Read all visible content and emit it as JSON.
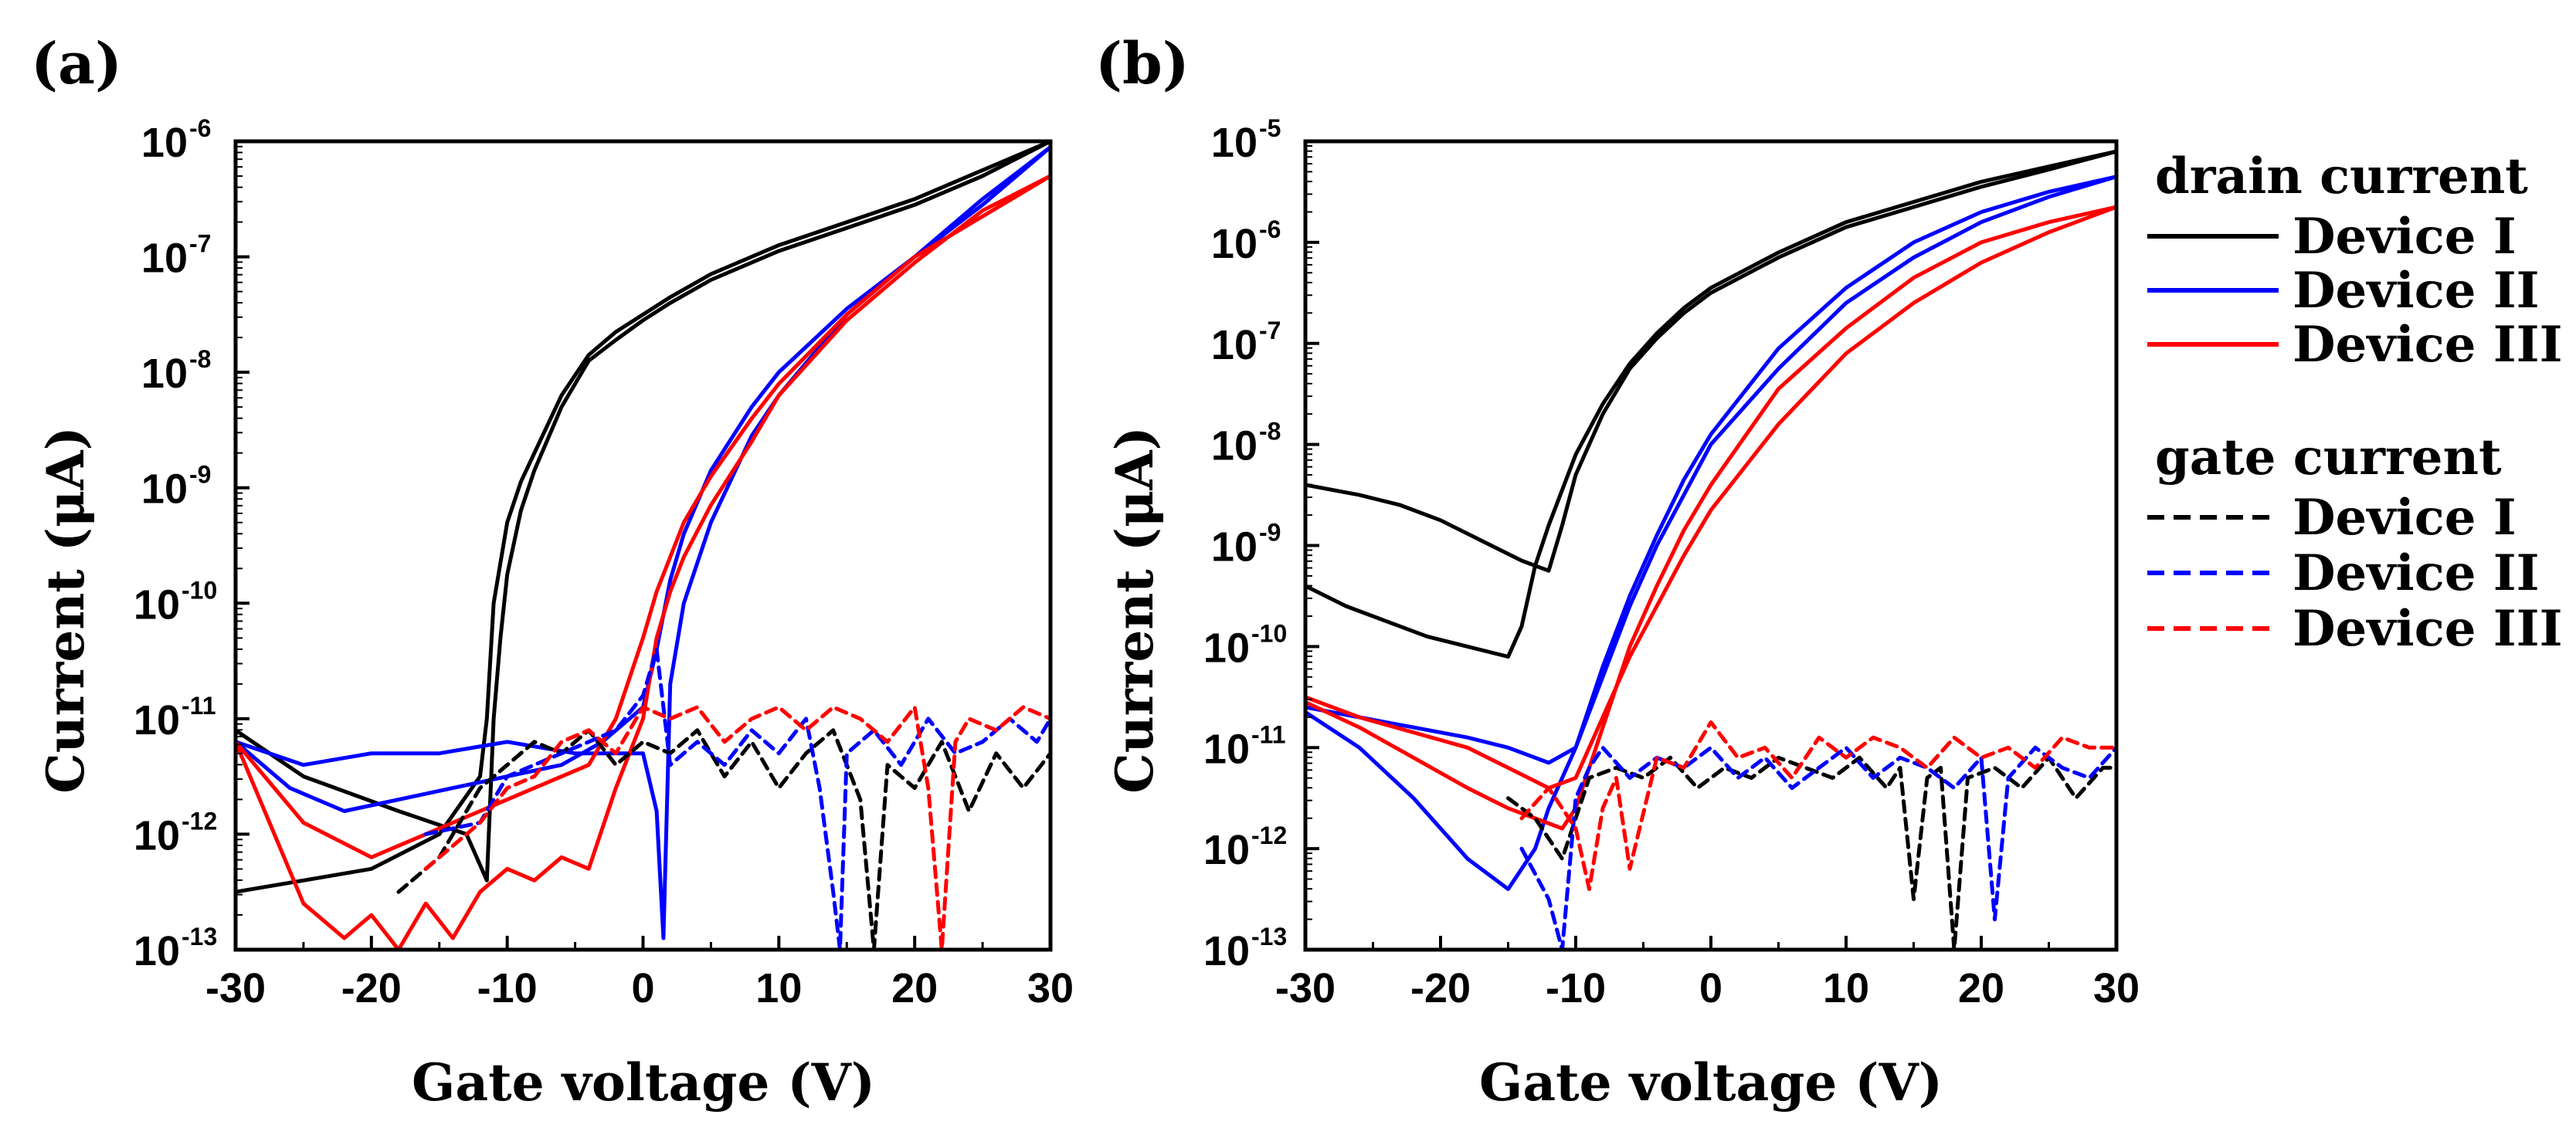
{
  "chart_data": [
    {
      "panel_label": "(a)",
      "type": "line",
      "xlabel": "Gate voltage (V)",
      "ylabel": "Current (μA)",
      "y_scale": "log",
      "xlim": [
        -30,
        30
      ],
      "ylim_exp": [
        -13,
        -6
      ],
      "xticks": [
        -30,
        -20,
        -10,
        0,
        10,
        20,
        30
      ],
      "yticks_exp": [
        -13,
        -12,
        -11,
        -10,
        -9,
        -8,
        -7,
        -6
      ],
      "series": [
        {
          "name": "Device I",
          "kind": "drain",
          "branch": "forward",
          "color": "#000000",
          "x": [
            -30,
            -25,
            -20,
            -15,
            -12,
            -11.5,
            -11,
            -10,
            -9,
            -8,
            -6,
            -4,
            -2,
            0,
            2,
            5,
            10,
            15,
            20,
            25,
            30
          ],
          "y_exp": [
            -12.5,
            -12.4,
            -12.3,
            -12.0,
            -11.5,
            -11,
            -10,
            -9.3,
            -8.95,
            -8.7,
            -8.2,
            -7.85,
            -7.65,
            -7.5,
            -7.35,
            -7.15,
            -6.9,
            -6.7,
            -6.5,
            -6.25,
            -6.0
          ]
        },
        {
          "name": "Device I",
          "kind": "drain",
          "branch": "reverse",
          "color": "#000000",
          "x": [
            30,
            25,
            20,
            15,
            10,
            5,
            2,
            0,
            -2,
            -4,
            -6,
            -8,
            -9,
            -10,
            -10.5,
            -11,
            -11.5,
            -13,
            -18,
            -25,
            -30
          ],
          "y_exp": [
            -6.0,
            -6.3,
            -6.55,
            -6.75,
            -6.95,
            -7.2,
            -7.4,
            -7.55,
            -7.72,
            -7.9,
            -8.3,
            -8.85,
            -9.2,
            -9.75,
            -10.3,
            -11,
            -12.4,
            -12.0,
            -11.8,
            -11.5,
            -11.1
          ]
        },
        {
          "name": "Device II",
          "kind": "drain",
          "branch": "forward",
          "color": "#0000ff",
          "x": [
            -30,
            -25,
            -20,
            -15,
            -10,
            -5,
            0,
            1,
            1.5,
            2,
            3,
            5,
            8,
            10,
            15,
            20,
            25,
            30
          ],
          "y_exp": [
            -11.2,
            -11.4,
            -11.3,
            -11.3,
            -11.2,
            -11.3,
            -11.3,
            -11.8,
            -12.9,
            -10.7,
            -10.0,
            -9.3,
            -8.55,
            -8.2,
            -7.5,
            -7.0,
            -6.55,
            -6.05
          ]
        },
        {
          "name": "Device II",
          "kind": "drain",
          "branch": "reverse",
          "color": "#0000ff",
          "x": [
            30,
            25,
            20,
            15,
            10,
            8,
            5,
            3,
            2,
            1,
            0,
            -3,
            -6,
            -10,
            -14,
            -18,
            -22,
            -26,
            -30
          ],
          "y_exp": [
            -6.05,
            -6.5,
            -7.0,
            -7.45,
            -8.0,
            -8.3,
            -8.85,
            -9.4,
            -9.8,
            -10.4,
            -10.9,
            -11.2,
            -11.4,
            -11.5,
            -11.6,
            -11.7,
            -11.8,
            -11.6,
            -11.2
          ]
        },
        {
          "name": "Device III",
          "kind": "drain",
          "branch": "forward",
          "color": "#ff0000",
          "x": [
            -30,
            -25,
            -22,
            -20,
            -18,
            -16,
            -14,
            -12,
            -10,
            -8,
            -6,
            -4,
            -2,
            0,
            1,
            2,
            3,
            5,
            8,
            10,
            15,
            20,
            25,
            30
          ],
          "y_exp": [
            -11.2,
            -12.6,
            -12.9,
            -12.7,
            -13.0,
            -12.6,
            -12.9,
            -12.5,
            -12.3,
            -12.4,
            -12.2,
            -12.3,
            -11.6,
            -11.0,
            -10.3,
            -9.9,
            -9.6,
            -9.15,
            -8.6,
            -8.2,
            -7.55,
            -7.05,
            -6.6,
            -6.3
          ]
        },
        {
          "name": "Device III",
          "kind": "drain",
          "branch": "reverse",
          "color": "#ff0000",
          "x": [
            30,
            25,
            20,
            15,
            10,
            8,
            5,
            3,
            2,
            1,
            0,
            -2,
            -4,
            -8,
            -12,
            -16,
            -20,
            -25,
            -30
          ],
          "y_exp": [
            -6.3,
            -6.65,
            -7.0,
            -7.5,
            -8.1,
            -8.4,
            -8.9,
            -9.3,
            -9.6,
            -9.9,
            -10.3,
            -11.0,
            -11.4,
            -11.6,
            -11.8,
            -12.0,
            -12.2,
            -11.9,
            -11.2
          ]
        },
        {
          "name": "Device I",
          "kind": "gate",
          "color": "#000000",
          "x": [
            -18,
            -15,
            -12,
            -10,
            -8,
            -6,
            -4,
            -2,
            0,
            2,
            4,
            6,
            8,
            10,
            12,
            14,
            16,
            17,
            18,
            20,
            22,
            24,
            26,
            28,
            30
          ],
          "y_exp": [
            -12.5,
            -12.2,
            -11.6,
            -11.4,
            -11.2,
            -11.3,
            -11.1,
            -11.4,
            -11.2,
            -11.3,
            -11.1,
            -11.5,
            -11.2,
            -11.6,
            -11.3,
            -11.1,
            -11.7,
            -13.0,
            -11.4,
            -11.6,
            -11.2,
            -11.8,
            -11.3,
            -11.6,
            -11.3
          ]
        },
        {
          "name": "Device II",
          "kind": "gate",
          "color": "#0000ff",
          "x": [
            -16,
            -12,
            -10,
            -8,
            -6,
            -4,
            -2,
            0,
            1,
            2,
            4,
            6,
            8,
            10,
            12,
            13,
            14,
            14.5,
            15,
            17,
            19,
            21,
            23,
            25,
            27,
            29,
            30
          ],
          "y_exp": [
            -12.0,
            -11.9,
            -11.5,
            -11.4,
            -11.3,
            -11.2,
            -11.1,
            -10.8,
            -10.4,
            -11.4,
            -11.2,
            -11.4,
            -11.1,
            -11.3,
            -11.0,
            -11.6,
            -12.5,
            -13.0,
            -11.3,
            -11.1,
            -11.4,
            -11.0,
            -11.3,
            -11.2,
            -11.0,
            -11.2,
            -11.0
          ]
        },
        {
          "name": "Device III",
          "kind": "gate",
          "color": "#ff0000",
          "x": [
            -16,
            -12,
            -10,
            -8,
            -6,
            -4,
            -2,
            0,
            2,
            4,
            6,
            8,
            10,
            12,
            14,
            16,
            18,
            20,
            21,
            22,
            23,
            24,
            26,
            28,
            30
          ],
          "y_exp": [
            -12.3,
            -11.9,
            -11.6,
            -11.5,
            -11.2,
            -11.1,
            -11.3,
            -10.9,
            -11.0,
            -10.9,
            -11.2,
            -11.0,
            -10.9,
            -11.1,
            -10.9,
            -11.0,
            -11.2,
            -10.9,
            -11.6,
            -13.0,
            -11.2,
            -11.0,
            -11.1,
            -10.9,
            -11.0
          ]
        }
      ]
    },
    {
      "panel_label": "(b)",
      "type": "line",
      "xlabel": "Gate voltage (V)",
      "ylabel": "Current (μA)",
      "y_scale": "log",
      "xlim": [
        -30,
        30
      ],
      "ylim_exp": [
        -13,
        -5
      ],
      "xticks": [
        -30,
        -20,
        -10,
        0,
        10,
        20,
        30
      ],
      "yticks_exp": [
        -13,
        -12,
        -11,
        -10,
        -9,
        -8,
        -7,
        -6,
        -5
      ],
      "series": [
        {
          "name": "Device I",
          "kind": "drain",
          "branch": "forward",
          "color": "#000000",
          "x": [
            -30,
            -27,
            -24,
            -21,
            -18,
            -15,
            -14,
            -13,
            -12,
            -11,
            -10,
            -8,
            -6,
            -4,
            -2,
            0,
            5,
            10,
            15,
            20,
            25,
            30
          ],
          "y_exp": [
            -9.4,
            -9.6,
            -9.75,
            -9.9,
            -10.0,
            -10.1,
            -9.8,
            -9.2,
            -8.8,
            -8.45,
            -8.1,
            -7.6,
            -7.2,
            -6.9,
            -6.65,
            -6.45,
            -6.1,
            -5.8,
            -5.6,
            -5.4,
            -5.25,
            -5.1
          ]
        },
        {
          "name": "Device I",
          "kind": "drain",
          "branch": "reverse",
          "color": "#000000",
          "x": [
            30,
            25,
            20,
            15,
            10,
            5,
            0,
            -2,
            -4,
            -6,
            -8,
            -10,
            -11,
            -12,
            -14,
            -17,
            -20,
            -23,
            -26,
            -30
          ],
          "y_exp": [
            -5.1,
            -5.28,
            -5.45,
            -5.65,
            -5.85,
            -6.15,
            -6.5,
            -6.7,
            -6.95,
            -7.25,
            -7.7,
            -8.3,
            -8.8,
            -9.25,
            -9.15,
            -8.95,
            -8.75,
            -8.6,
            -8.5,
            -8.4
          ]
        },
        {
          "name": "Device II",
          "kind": "drain",
          "branch": "forward",
          "color": "#0000ff",
          "x": [
            -30,
            -26,
            -22,
            -18,
            -15,
            -13,
            -12,
            -11,
            -10,
            -9,
            -8,
            -6,
            -4,
            -2,
            0,
            5,
            10,
            15,
            20,
            25,
            30
          ],
          "y_exp": [
            -10.65,
            -11.0,
            -11.5,
            -12.1,
            -12.4,
            -12.0,
            -11.6,
            -11.3,
            -11.0,
            -10.6,
            -10.2,
            -9.5,
            -8.9,
            -8.35,
            -7.9,
            -7.05,
            -6.45,
            -6.0,
            -5.7,
            -5.5,
            -5.35
          ]
        },
        {
          "name": "Device II",
          "kind": "drain",
          "branch": "reverse",
          "color": "#0000ff",
          "x": [
            30,
            25,
            20,
            15,
            10,
            5,
            0,
            -2,
            -4,
            -6,
            -8,
            -10,
            -12,
            -15,
            -18,
            -22,
            -26,
            -30
          ],
          "y_exp": [
            -5.35,
            -5.55,
            -5.8,
            -6.15,
            -6.6,
            -7.25,
            -8.0,
            -8.5,
            -9.0,
            -9.6,
            -10.3,
            -11.0,
            -11.15,
            -11.0,
            -10.9,
            -10.8,
            -10.7,
            -10.6
          ]
        },
        {
          "name": "Device III",
          "kind": "drain",
          "branch": "forward",
          "color": "#ff0000",
          "x": [
            -30,
            -26,
            -22,
            -18,
            -15,
            -13,
            -11,
            -10,
            -9,
            -8,
            -6,
            -4,
            -2,
            0,
            5,
            10,
            15,
            20,
            25,
            30
          ],
          "y_exp": [
            -10.55,
            -10.8,
            -11.1,
            -11.4,
            -11.6,
            -11.7,
            -11.8,
            -11.6,
            -11.2,
            -10.8,
            -10.0,
            -9.4,
            -8.85,
            -8.4,
            -7.45,
            -6.85,
            -6.35,
            -6.0,
            -5.8,
            -5.65
          ]
        },
        {
          "name": "Device III",
          "kind": "drain",
          "branch": "reverse",
          "color": "#ff0000",
          "x": [
            30,
            25,
            20,
            15,
            10,
            5,
            0,
            -2,
            -4,
            -6,
            -8,
            -9,
            -10,
            -12,
            -15,
            -18,
            -22,
            -26,
            -30
          ],
          "y_exp": [
            -5.65,
            -5.9,
            -6.2,
            -6.6,
            -7.1,
            -7.8,
            -8.65,
            -9.1,
            -9.6,
            -10.1,
            -10.7,
            -11.0,
            -11.3,
            -11.4,
            -11.2,
            -11.0,
            -10.85,
            -10.7,
            -10.5
          ]
        },
        {
          "name": "Device I",
          "kind": "gate",
          "color": "#000000",
          "x": [
            -15,
            -13,
            -11,
            -9,
            -7,
            -5,
            -3,
            -1,
            1,
            3,
            5,
            7,
            9,
            11,
            13,
            14,
            15,
            16,
            17,
            18,
            19,
            21,
            23,
            25,
            27,
            29,
            30
          ],
          "y_exp": [
            -11.5,
            -11.7,
            -12.1,
            -11.3,
            -11.2,
            -11.3,
            -11.1,
            -11.4,
            -11.2,
            -11.3,
            -11.1,
            -11.2,
            -11.3,
            -11.1,
            -11.4,
            -11.2,
            -12.5,
            -11.3,
            -11.2,
            -13.0,
            -11.3,
            -11.2,
            -11.4,
            -11.1,
            -11.5,
            -11.2,
            -11.2
          ]
        },
        {
          "name": "Device II",
          "kind": "gate",
          "color": "#0000ff",
          "x": [
            -14,
            -12,
            -11,
            -10,
            -9,
            -8,
            -6,
            -4,
            -2,
            0,
            2,
            4,
            6,
            8,
            10,
            12,
            14,
            16,
            18,
            20,
            21,
            22,
            24,
            26,
            28,
            30
          ],
          "y_exp": [
            -12.0,
            -12.5,
            -13.0,
            -11.5,
            -11.2,
            -11.0,
            -11.3,
            -11.1,
            -11.2,
            -11.0,
            -11.3,
            -11.1,
            -11.4,
            -11.2,
            -11.0,
            -11.3,
            -11.1,
            -11.2,
            -11.4,
            -11.1,
            -12.7,
            -11.3,
            -11.0,
            -11.2,
            -11.3,
            -11.0
          ]
        },
        {
          "name": "Device III",
          "kind": "gate",
          "color": "#ff0000",
          "x": [
            -14,
            -12,
            -10,
            -9,
            -8,
            -7,
            -6,
            -4,
            -2,
            0,
            2,
            4,
            6,
            8,
            10,
            12,
            14,
            16,
            18,
            20,
            22,
            24,
            26,
            28,
            30
          ],
          "y_exp": [
            -11.7,
            -11.4,
            -11.8,
            -12.4,
            -11.6,
            -11.3,
            -12.2,
            -11.1,
            -11.2,
            -10.75,
            -11.1,
            -11.0,
            -11.3,
            -10.9,
            -11.1,
            -10.9,
            -11.0,
            -11.2,
            -10.9,
            -11.1,
            -11.0,
            -11.2,
            -10.9,
            -11.0,
            -11.0
          ]
        }
      ]
    }
  ],
  "legend": {
    "drain_heading": "drain current",
    "gate_heading": "gate current",
    "drain_items": [
      {
        "label": "Device I",
        "color": "#000000"
      },
      {
        "label": "Device II",
        "color": "#0000ff"
      },
      {
        "label": "Device III",
        "color": "#ff0000"
      }
    ],
    "gate_items": [
      {
        "label": "Device I",
        "color": "#000000"
      },
      {
        "label": "Device II",
        "color": "#0000ff"
      },
      {
        "label": "Device III",
        "color": "#ff0000"
      }
    ]
  },
  "tick_base": "10"
}
